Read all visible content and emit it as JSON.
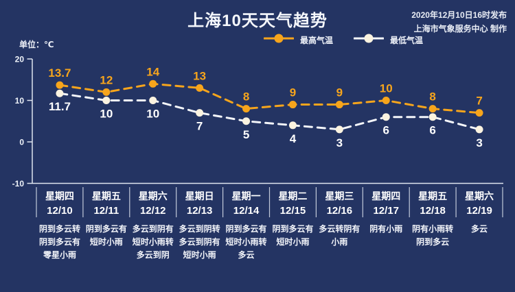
{
  "header": {
    "title": "上海10天天气趋势",
    "publish_time": "2020年12月10日16时发布",
    "publisher": "上海市气象服务中心 制作"
  },
  "unit_label": "单位：℃",
  "legend": {
    "high": "最高气温",
    "low": "最低气温"
  },
  "colors": {
    "background": "#243463",
    "high": "#f7a51c",
    "low_marker": "#fbf3e0",
    "low_line": "#f4f6fa",
    "text": "#ffffff",
    "axis": "#dfe5ef"
  },
  "chart_data": {
    "type": "line",
    "title": "上海10天天气趋势",
    "categories": [
      "12/10",
      "12/11",
      "12/12",
      "12/13",
      "12/14",
      "12/15",
      "12/16",
      "12/17",
      "12/18",
      "12/19"
    ],
    "weekdays": [
      "星期四",
      "星期五",
      "星期六",
      "星期日",
      "星期一",
      "星期二",
      "星期三",
      "星期四",
      "星期五",
      "星期六"
    ],
    "series": [
      {
        "name": "最高气温",
        "values": [
          13.7,
          12,
          14,
          13,
          8,
          9,
          9,
          10,
          8,
          7
        ],
        "line_color": "#f7a51c",
        "marker_color": "#f7a51c",
        "label_color": "#f7a51c",
        "label_position": "above"
      },
      {
        "name": "最低气温",
        "values": [
          11.7,
          10,
          10,
          7,
          5,
          4,
          3,
          6,
          6,
          3
        ],
        "line_color": "#f4f6fa",
        "marker_color": "#fbf3e0",
        "label_color": "#ffffff",
        "label_position": "below"
      }
    ],
    "ylabel": "单位：℃",
    "yticks": [
      20,
      10,
      0,
      -10
    ],
    "ylim": [
      -10,
      20
    ],
    "grid": false,
    "legend_position": "top-center",
    "line_style": "dashed"
  },
  "days": [
    {
      "weekday": "星期四",
      "date": "12/10",
      "weather": [
        "阴到多云转",
        "阴到多云有",
        "零星小雨"
      ]
    },
    {
      "weekday": "星期五",
      "date": "12/11",
      "weather": [
        "阴到多云有",
        "短时小雨"
      ]
    },
    {
      "weekday": "星期六",
      "date": "12/12",
      "weather": [
        "多云到阴有",
        "短时小雨转",
        "多云到阴"
      ]
    },
    {
      "weekday": "星期日",
      "date": "12/13",
      "weather": [
        "多云到阴转",
        "多云到阴有",
        "短时小雨"
      ]
    },
    {
      "weekday": "星期一",
      "date": "12/14",
      "weather": [
        "阴到多云有",
        "短时小雨转",
        "多云"
      ]
    },
    {
      "weekday": "星期二",
      "date": "12/15",
      "weather": [
        "阴到多云有",
        "短时小雨"
      ]
    },
    {
      "weekday": "星期三",
      "date": "12/16",
      "weather": [
        "多云转阴有",
        "小雨"
      ]
    },
    {
      "weekday": "星期四",
      "date": "12/17",
      "weather": [
        "阴有小雨"
      ]
    },
    {
      "weekday": "星期五",
      "date": "12/18",
      "weather": [
        "阴有小雨转",
        "阴到多云"
      ]
    },
    {
      "weekday": "星期六",
      "date": "12/19",
      "weather": [
        "多云"
      ]
    }
  ]
}
